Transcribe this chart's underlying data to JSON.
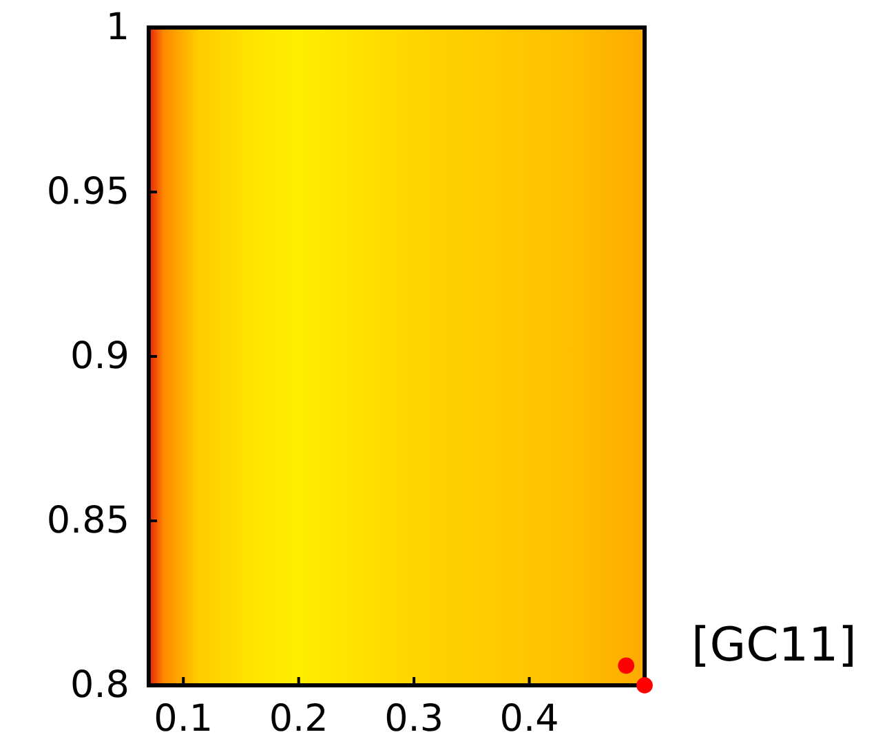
{
  "chart_data": {
    "type": "scatter",
    "x": [
      0.484,
      0.5
    ],
    "values": [
      0.806,
      0.8
    ],
    "color": "#ff0000",
    "marker": "circle",
    "xlim": [
      0.07,
      0.5
    ],
    "ylim": [
      0.8,
      1
    ],
    "xticks": [
      0.1,
      0.2,
      0.3,
      0.4
    ],
    "yticks": [
      0.8,
      0.85,
      0.9,
      0.95,
      1
    ],
    "grid": false,
    "annotations": [
      "[GC11]"
    ]
  }
}
